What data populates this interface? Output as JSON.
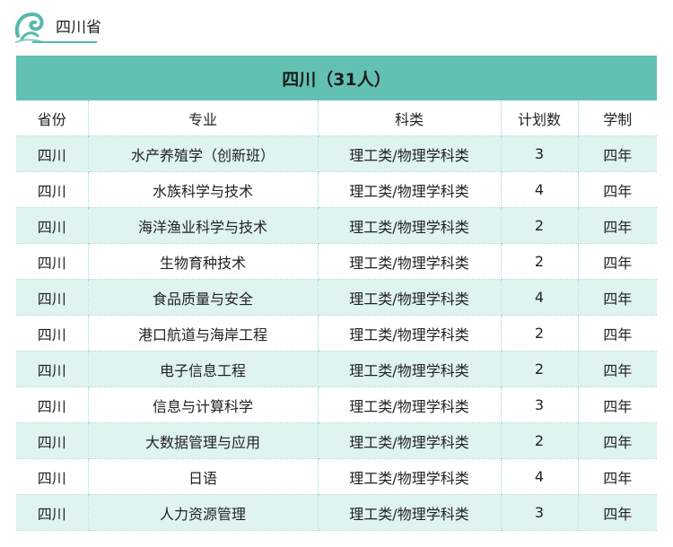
{
  "header": {
    "section_title": "四川省",
    "logo_icon": "wave-logo-icon",
    "accent_color": "#55b8ab"
  },
  "table": {
    "banner": "四川（31人）",
    "banner_color": "#63c1b3",
    "stripe_color": "#dff3ef",
    "columns": {
      "province": "省份",
      "major": "专业",
      "category": "科类",
      "plan": "计划数",
      "duration": "学制"
    },
    "rows": [
      {
        "province": "四川",
        "major": "水产养殖学（创新班）",
        "category": "理工类/物理学科类",
        "plan": "3",
        "duration": "四年"
      },
      {
        "province": "四川",
        "major": "水族科学与技术",
        "category": "理工类/物理学科类",
        "plan": "4",
        "duration": "四年"
      },
      {
        "province": "四川",
        "major": "海洋渔业科学与技术",
        "category": "理工类/物理学科类",
        "plan": "2",
        "duration": "四年"
      },
      {
        "province": "四川",
        "major": "生物育种技术",
        "category": "理工类/物理学科类",
        "plan": "2",
        "duration": "四年"
      },
      {
        "province": "四川",
        "major": "食品质量与安全",
        "category": "理工类/物理学科类",
        "plan": "4",
        "duration": "四年"
      },
      {
        "province": "四川",
        "major": "港口航道与海岸工程",
        "category": "理工类/物理学科类",
        "plan": "2",
        "duration": "四年"
      },
      {
        "province": "四川",
        "major": "电子信息工程",
        "category": "理工类/物理学科类",
        "plan": "2",
        "duration": "四年"
      },
      {
        "province": "四川",
        "major": "信息与计算科学",
        "category": "理工类/物理学科类",
        "plan": "3",
        "duration": "四年"
      },
      {
        "province": "四川",
        "major": "大数据管理与应用",
        "category": "理工类/物理学科类",
        "plan": "2",
        "duration": "四年"
      },
      {
        "province": "四川",
        "major": "日语",
        "category": "理工类/物理学科类",
        "plan": "4",
        "duration": "四年"
      },
      {
        "province": "四川",
        "major": "人力资源管理",
        "category": "理工类/物理学科类",
        "plan": "3",
        "duration": "四年"
      }
    ]
  }
}
